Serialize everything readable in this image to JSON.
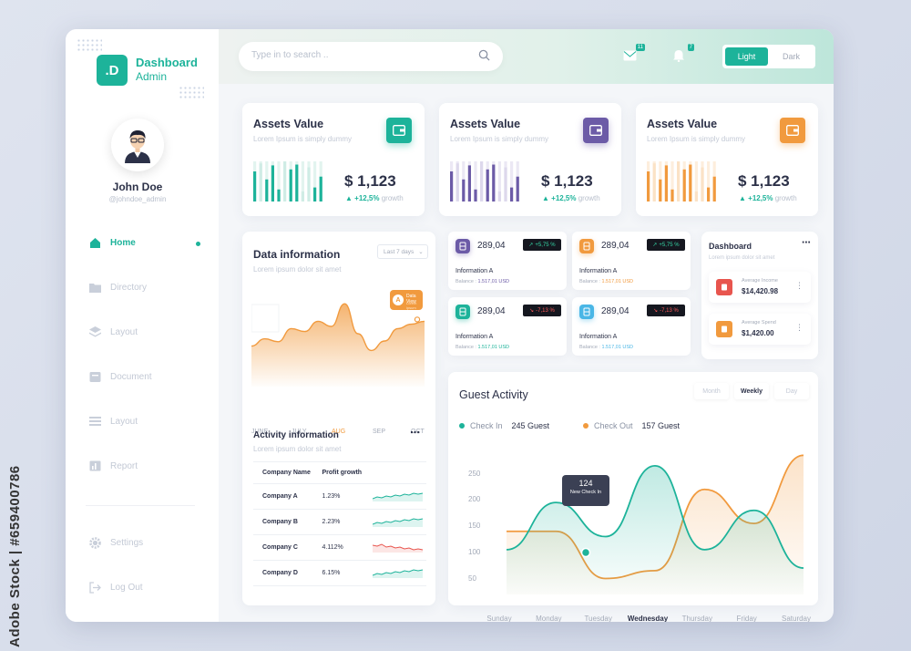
{
  "watermark": "Adobe Stock | #659400786",
  "brand": {
    "mark": ".D",
    "title": "Dashboard",
    "subtitle": "Admin"
  },
  "user": {
    "name": "John Doe",
    "handle": "@johndoe_admin"
  },
  "nav": [
    {
      "label": "Home",
      "icon": "home-icon",
      "active": true
    },
    {
      "label": "Directory",
      "icon": "folder-icon"
    },
    {
      "label": "Layout",
      "icon": "layers-icon"
    },
    {
      "label": "Document",
      "icon": "document-icon"
    },
    {
      "label": "Layout",
      "icon": "layout-icon"
    },
    {
      "label": "Report",
      "icon": "report-icon"
    }
  ],
  "nav_bottom": [
    {
      "label": "Settings",
      "icon": "gear-icon"
    },
    {
      "label": "Log Out",
      "icon": "logout-icon"
    }
  ],
  "topbar": {
    "search_placeholder": "Type in to search ..",
    "mail_badge": "11",
    "bell_badge": "7",
    "theme_light": "Light",
    "theme_dark": "Dark"
  },
  "colors": {
    "accent": "#1db39a",
    "purple": "#6c5ba7",
    "orange": "#f19a3e",
    "red": "#e8554e",
    "blue": "#49b6e6"
  },
  "assets": [
    {
      "title": "Assets Value",
      "subtitle": "Lorem Ipsum is simply dummy",
      "value": "$ 1,123",
      "growth": "+12,5%",
      "growth_word": "growth",
      "color": "#1db39a",
      "light": "#cfece5",
      "bars": [
        0.75,
        0.95,
        0.55,
        0.9,
        0.3,
        1.0,
        0.8,
        0.92,
        0.25,
        0.85,
        0.35,
        0.62
      ]
    },
    {
      "title": "Assets Value",
      "subtitle": "Lorem Ipsum is simply dummy",
      "value": "$ 1,123",
      "growth": "+12,5%",
      "growth_word": "growth",
      "color": "#6c5ba7",
      "light": "#ddd8ec",
      "bars": [
        0.75,
        0.95,
        0.55,
        0.9,
        0.3,
        1.0,
        0.8,
        0.92,
        0.25,
        0.85,
        0.35,
        0.62
      ]
    },
    {
      "title": "Assets Value",
      "subtitle": "Lorem Ipsum is simply dummy",
      "value": "$ 1,123",
      "growth": "+12,5%",
      "growth_word": "growth",
      "color": "#f19a3e",
      "light": "#fbe2c6",
      "bars": [
        0.75,
        0.95,
        0.55,
        0.9,
        0.3,
        1.0,
        0.8,
        0.92,
        0.25,
        0.85,
        0.35,
        0.62
      ]
    }
  ],
  "data_info": {
    "title": "Data information",
    "subtitle": "Lorem ipsum dolor sit amet",
    "range": "Last 7 days",
    "months": [
      "JUNE",
      "JULY",
      "AUG",
      "SEP",
      "OCT"
    ],
    "highlight_month": "AUG",
    "marker_letter": "A",
    "marker_label": "Data View",
    "marker_sub": "Lorem ipsum",
    "series": [
      0.28,
      0.38,
      0.34,
      0.52,
      0.48,
      0.62,
      0.55,
      0.86,
      0.45,
      0.22,
      0.35,
      0.52,
      0.58,
      0.62
    ]
  },
  "activity": {
    "title": "Activity information",
    "subtitle": "Lorem ipsum dolor sit amet",
    "headers": [
      "Company Name",
      "Profit growth"
    ],
    "rows": [
      {
        "company": "Company A",
        "growth": "1.23%",
        "trend": "up"
      },
      {
        "company": "Company B",
        "growth": "2.23%",
        "trend": "up"
      },
      {
        "company": "Company C",
        "growth": "4.112%",
        "trend": "down"
      },
      {
        "company": "Company D",
        "growth": "6.15%",
        "trend": "up"
      }
    ]
  },
  "info_cards": [
    {
      "value": "289,04",
      "change": "+5,75 %",
      "dir": "up",
      "label": "Information A",
      "balance_label": "Balance :",
      "balance": "1.517,01 USD",
      "color": "#6c5ba7",
      "bal_color": "#6c5ba7"
    },
    {
      "value": "289,04",
      "change": "+5,75 %",
      "dir": "up",
      "label": "Information A",
      "balance_label": "Balance :",
      "balance": "1.517,01 USD",
      "color": "#f19a3e",
      "bal_color": "#f19a3e"
    },
    {
      "value": "289,04",
      "change": "-7,13 %",
      "dir": "down",
      "label": "Information A",
      "balance_label": "Balance :",
      "balance": "1.517,01 USD",
      "color": "#1db39a",
      "bal_color": "#1db39a"
    },
    {
      "value": "289,04",
      "change": "-7,13 %",
      "dir": "down",
      "label": "Information A",
      "balance_label": "Balance :",
      "balance": "1.517,01 USD",
      "color": "#49b6e6",
      "bal_color": "#49b6e6"
    }
  ],
  "dashboard_panel": {
    "title": "Dashboard",
    "subtitle": "Lorem ipsum dolor sit amet",
    "items": [
      {
        "label": "Average Income",
        "value": "$14,420.98",
        "color": "#e8554e"
      },
      {
        "label": "Average Spend",
        "value": "$1,420.00",
        "color": "#f19a3e"
      }
    ]
  },
  "guest": {
    "title": "Guest Activity",
    "tabs": [
      "Month",
      "Weekly",
      "Day"
    ],
    "active_tab": "Weekly",
    "legend": [
      {
        "name": "Check In",
        "count": "245 Guest",
        "color": "#1db39a"
      },
      {
        "name": "Check Out",
        "count": "157 Guest",
        "color": "#f19a3e"
      }
    ],
    "tooltip_value": "124",
    "tooltip_label": "New Check In"
  },
  "chart_data": {
    "type": "line",
    "title": "Guest Activity",
    "categories": [
      "Sunday",
      "Monday",
      "Tuesday",
      "Wednesday",
      "Thursday",
      "Friday",
      "Saturday"
    ],
    "highlight_category": "Wednesday",
    "yticks": [
      250,
      200,
      150,
      100,
      50
    ],
    "ylim": [
      30,
      270
    ],
    "series": [
      {
        "name": "Check In",
        "color": "#1db39a",
        "values": [
          105,
          195,
          130,
          265,
          105,
          180,
          70
        ]
      },
      {
        "name": "Check Out",
        "color": "#f19a3e",
        "values": [
          140,
          140,
          50,
          65,
          220,
          155,
          285
        ]
      }
    ]
  }
}
